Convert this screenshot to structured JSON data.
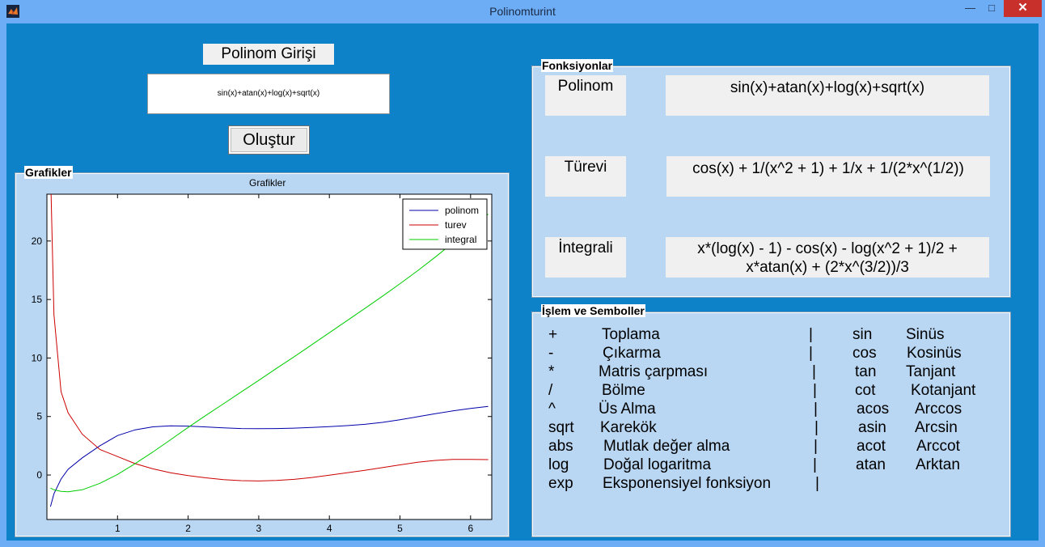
{
  "window": {
    "title": "Polinomturint",
    "minimize_glyph": "—",
    "maximize_glyph": "□",
    "close_glyph": "✕",
    "icon": "matlab-icon"
  },
  "input": {
    "label": "Polinom Girişi",
    "value": "sin(x)+atan(x)+log(x)+sqrt(x)",
    "button": "Oluştur"
  },
  "graph_panel": {
    "title": "Grafikler"
  },
  "functions_panel": {
    "title": "Fonksiyonlar",
    "rows": [
      {
        "label": "Polinom",
        "value_lines": [
          "sin(x)+atan(x)+log(x)+sqrt(x)"
        ]
      },
      {
        "label": "Türevi",
        "value_lines": [
          "cos(x) + 1/(x^2 + 1) + 1/x + 1/(2*x^(1/2))"
        ]
      },
      {
        "label": "İntegrali",
        "value_lines": [
          "x*(log(x) - 1) - cos(x) - log(x^2 + 1)/2 +",
          "x*atan(x) + (2*x^(3/2))/3"
        ]
      }
    ]
  },
  "symbols_panel": {
    "title": "İşlem ve Semboller",
    "operators": [
      {
        "sym": "+",
        "desc": "Toplama"
      },
      {
        "sym": "-",
        "desc": "Çıkarma"
      },
      {
        "sym": "*",
        "desc": "Matris çarpması"
      },
      {
        "sym": "/",
        "desc": "Bölme"
      },
      {
        "sym": "^",
        "desc": "Üs Alma"
      },
      {
        "sym": "sqrt",
        "desc": "Karekök"
      },
      {
        "sym": "abs",
        "desc": "Mutlak değer alma"
      },
      {
        "sym": "log",
        "desc": "Doğal logaritma"
      },
      {
        "sym": "exp",
        "desc": "Eksponensiyel fonksiyon"
      }
    ],
    "separator": "|",
    "functions": [
      {
        "sym": "sin",
        "desc": "Sinüs"
      },
      {
        "sym": "cos",
        "desc": "Kosinüs"
      },
      {
        "sym": "tan",
        "desc": "Tanjant"
      },
      {
        "sym": "cot",
        "desc": "Kotanjant"
      },
      {
        "sym": "acos",
        "desc": "Arccos"
      },
      {
        "sym": "asin",
        "desc": "Arcsin"
      },
      {
        "sym": "acot",
        "desc": "Arccot"
      },
      {
        "sym": "atan",
        "desc": "Arktan"
      }
    ]
  },
  "chart_data": {
    "type": "line",
    "title": "Grafikler",
    "xlabel": "",
    "ylabel": "",
    "xlim": [
      0,
      6.3
    ],
    "ylim": [
      -3.8,
      24
    ],
    "xticks": [
      1,
      2,
      3,
      4,
      5,
      6
    ],
    "yticks": [
      0,
      5,
      10,
      15,
      20
    ],
    "legend_position": "top-right",
    "x": [
      0.05,
      0.1,
      0.2,
      0.3,
      0.5,
      0.75,
      1.0,
      1.25,
      1.5,
      1.75,
      2.0,
      2.25,
      2.5,
      2.75,
      3.0,
      3.25,
      3.5,
      3.75,
      4.0,
      4.25,
      4.5,
      4.75,
      5.0,
      5.25,
      5.5,
      5.75,
      6.0,
      6.25
    ],
    "series": [
      {
        "name": "polinom",
        "color": "#0000aa",
        "values": [
          -2.7,
          -1.6,
          -0.34,
          0.49,
          1.47,
          2.5,
          3.37,
          3.86,
          4.12,
          4.21,
          4.18,
          4.11,
          4.03,
          3.97,
          3.96,
          3.97,
          4.01,
          4.07,
          4.13,
          4.22,
          4.33,
          4.5,
          4.72,
          4.98,
          5.24,
          5.48,
          5.69,
          5.86
        ]
      },
      {
        "name": "turev",
        "color": "#cc0000",
        "values": [
          26.2,
          13.7,
          7.11,
          5.32,
          3.49,
          2.18,
          1.58,
          0.97,
          0.53,
          0.2,
          -0.05,
          -0.24,
          -0.39,
          -0.48,
          -0.51,
          -0.47,
          -0.37,
          -0.21,
          -0.02,
          0.19,
          0.4,
          0.63,
          0.87,
          1.09,
          1.25,
          1.33,
          1.34,
          1.32
        ]
      },
      {
        "name": "integral",
        "color": "#00cc00",
        "values": [
          -1.12,
          -1.26,
          -1.39,
          -1.43,
          -1.26,
          -0.71,
          0.05,
          0.98,
          1.97,
          3.01,
          4.07,
          5.09,
          6.09,
          7.1,
          8.09,
          9.11,
          10.11,
          11.13,
          12.16,
          13.19,
          14.23,
          15.27,
          16.35,
          17.46,
          18.63,
          19.85,
          21.08,
          22.3
        ]
      }
    ]
  }
}
